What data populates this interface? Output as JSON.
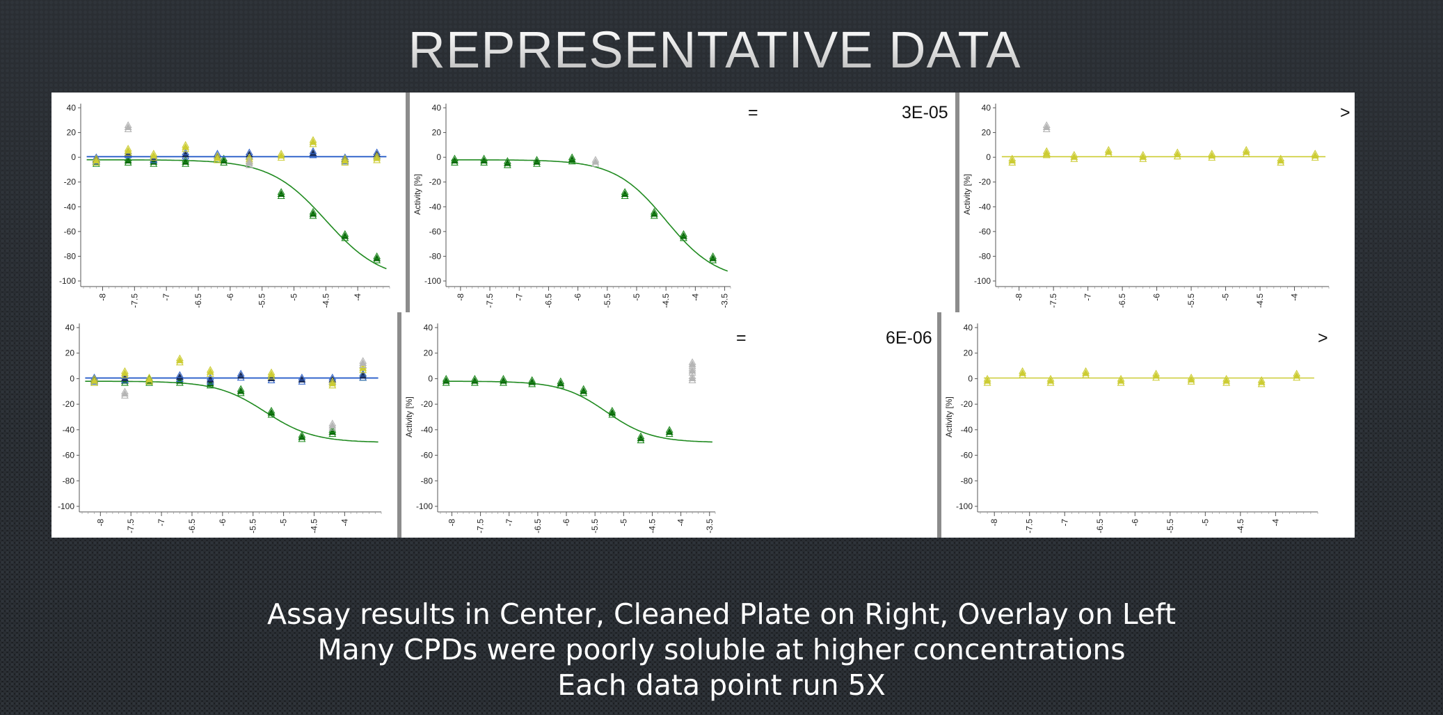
{
  "slide": {
    "title": "REPRESENTATIVE DATA",
    "captions": [
      "Assay results in Center, Cleaned Plate on Right, Overlay on Left",
      "Many CPDs were poorly soluble at higher concentrations",
      "Each data point run 5X"
    ],
    "row1": {
      "operator": "=",
      "value": "3E-05",
      "right_mark": ">"
    },
    "row2": {
      "operator": "=",
      "value": "6E-06",
      "right_mark": ">"
    }
  },
  "colors": {
    "green": "#1f8a1f",
    "dark_green": "#0b6b0b",
    "yellow": "#cccc33",
    "blue": "#3366cc",
    "navy": "#1a2d5a",
    "gray": "#b5b5b5"
  },
  "chart_data": [
    {
      "id": "row1-overlay",
      "type": "scatter",
      "ylabel": "",
      "ylim": [
        -100,
        40
      ],
      "yticks": [
        40,
        20,
        0,
        -20,
        -40,
        -60,
        -80,
        -100
      ],
      "xticks": [
        "-8",
        "-7.5",
        "-7",
        "-6.5",
        "-6",
        "-5.5",
        "-5",
        "-4.5",
        "-4"
      ],
      "xlim": [
        -8.3,
        -3.5
      ],
      "series": [
        {
          "color": "green",
          "fit": {
            "top": -2,
            "bottom": -100,
            "logec50": -4.5,
            "hill": 1.0
          },
          "points": [
            [
              -8.1,
              -4
            ],
            [
              -7.6,
              -3
            ],
            [
              -7.2,
              -4
            ],
            [
              -6.7,
              -4
            ],
            [
              -6.1,
              -3
            ],
            [
              -5.2,
              -30
            ],
            [
              -4.7,
              -46
            ],
            [
              -4.2,
              -64
            ],
            [
              -3.7,
              -82
            ]
          ]
        },
        {
          "color": "blue",
          "fit": {
            "flat": 0.5
          },
          "points": [
            [
              -8.1,
              -2
            ],
            [
              -7.6,
              3
            ],
            [
              -7.2,
              -1
            ],
            [
              -6.7,
              2
            ],
            [
              -6.2,
              1
            ],
            [
              -5.7,
              2
            ],
            [
              -4.7,
              3
            ],
            [
              -4.2,
              -2
            ],
            [
              -3.7,
              2
            ]
          ]
        },
        {
          "color": "yellow",
          "fit": null,
          "points": [
            [
              -8.1,
              -3
            ],
            [
              -7.6,
              5
            ],
            [
              -7.2,
              1
            ],
            [
              -6.7,
              8
            ],
            [
              -6.2,
              -1
            ],
            [
              -5.7,
              -2
            ],
            [
              -5.2,
              1
            ],
            [
              -4.7,
              12
            ],
            [
              -4.2,
              -3
            ],
            [
              -3.7,
              -1
            ]
          ]
        },
        {
          "color": "gray",
          "fit": null,
          "points": [
            [
              -7.6,
              24
            ],
            [
              -5.7,
              -5
            ]
          ]
        }
      ]
    },
    {
      "id": "row1-assay",
      "type": "scatter",
      "ylabel": "Activity [%]",
      "ylim": [
        -100,
        40
      ],
      "yticks": [
        40,
        20,
        0,
        -20,
        -40,
        -60,
        -80,
        -100
      ],
      "xticks": [
        "-8",
        "-7.5",
        "-7",
        "-6.5",
        "-6",
        "-5.5",
        "-5",
        "-4.5",
        "-4",
        "-3.5"
      ],
      "xlim": [
        -8.2,
        -3.4
      ],
      "series": [
        {
          "color": "green",
          "fit": {
            "top": -2,
            "bottom": -100,
            "logec50": -4.5,
            "hill": 1.0
          },
          "points": [
            [
              -8.1,
              -3
            ],
            [
              -7.6,
              -3
            ],
            [
              -7.2,
              -5
            ],
            [
              -6.7,
              -4
            ],
            [
              -6.1,
              -2
            ],
            [
              -5.2,
              -30
            ],
            [
              -4.7,
              -46
            ],
            [
              -4.2,
              -64
            ],
            [
              -3.7,
              -82
            ]
          ]
        },
        {
          "color": "gray",
          "fit": null,
          "points": [
            [
              -5.7,
              -4
            ]
          ]
        }
      ]
    },
    {
      "id": "row1-cleaned",
      "type": "scatter",
      "ylabel": "Activity [%]",
      "ylim": [
        -100,
        40
      ],
      "yticks": [
        40,
        20,
        0,
        -20,
        -40,
        -60,
        -80,
        -100
      ],
      "xticks": [
        "-8",
        "-7.5",
        "-7",
        "-6.5",
        "-6",
        "-5.5",
        "-5",
        "-4.5",
        "-4"
      ],
      "xlim": [
        -8.3,
        -3.5
      ],
      "series": [
        {
          "color": "yellow",
          "fit": {
            "flat": 0.5
          },
          "points": [
            [
              -8.1,
              -3
            ],
            [
              -7.6,
              3
            ],
            [
              -7.2,
              0
            ],
            [
              -6.7,
              4
            ],
            [
              -6.2,
              0
            ],
            [
              -5.7,
              2
            ],
            [
              -5.2,
              1
            ],
            [
              -4.7,
              4
            ],
            [
              -4.2,
              -3
            ],
            [
              -3.7,
              1
            ]
          ]
        },
        {
          "color": "gray",
          "fit": null,
          "points": [
            [
              -7.6,
              24
            ]
          ]
        }
      ]
    },
    {
      "id": "row2-overlay",
      "type": "scatter",
      "ylabel": "",
      "ylim": [
        -100,
        40
      ],
      "yticks": [
        40,
        20,
        0,
        -20,
        -40,
        -60,
        -80,
        -100
      ],
      "xticks": [
        "-8",
        "-7.5",
        "-7",
        "-6.5",
        "-6",
        "-5.5",
        "-5",
        "-4.5",
        "-4"
      ],
      "xlim": [
        -8.3,
        -3.4
      ],
      "series": [
        {
          "color": "green",
          "fit": {
            "top": -2,
            "bottom": -50,
            "logec50": -5.3,
            "hill": 1.1
          },
          "points": [
            [
              -8.1,
              -2
            ],
            [
              -7.6,
              -2
            ],
            [
              -7.2,
              -2
            ],
            [
              -6.7,
              -2
            ],
            [
              -6.2,
              -4
            ],
            [
              -5.7,
              -10
            ],
            [
              -5.2,
              -27
            ],
            [
              -4.7,
              -46
            ],
            [
              -4.2,
              -42
            ],
            [
              -3.7,
              2
            ]
          ]
        },
        {
          "color": "blue",
          "fit": {
            "flat": 0.5
          },
          "points": [
            [
              -8.1,
              -1
            ],
            [
              -7.6,
              0
            ],
            [
              -6.7,
              1
            ],
            [
              -6.2,
              -1
            ],
            [
              -5.7,
              2
            ],
            [
              -5.2,
              0
            ],
            [
              -4.7,
              -1
            ],
            [
              -4.2,
              -1
            ],
            [
              -3.7,
              2
            ]
          ]
        },
        {
          "color": "yellow",
          "fit": null,
          "points": [
            [
              -8.1,
              -2
            ],
            [
              -7.6,
              4
            ],
            [
              -7.2,
              -1
            ],
            [
              -6.7,
              14
            ],
            [
              -6.2,
              5
            ],
            [
              -5.2,
              3
            ],
            [
              -4.2,
              -4
            ],
            [
              -3.7,
              8
            ]
          ]
        },
        {
          "color": "gray",
          "fit": null,
          "points": [
            [
              -7.6,
              -12
            ],
            [
              -4.2,
              -37
            ],
            [
              -3.7,
              12
            ]
          ]
        }
      ]
    },
    {
      "id": "row2-assay",
      "type": "scatter",
      "ylabel": "Activity [%]",
      "ylim": [
        -100,
        40
      ],
      "yticks": [
        40,
        20,
        0,
        -20,
        -40,
        -60,
        -80,
        -100
      ],
      "xticks": [
        "-8",
        "-7.5",
        "-7",
        "-6.5",
        "-6",
        "-5.5",
        "-5",
        "-4.5",
        "-4",
        "-3.5"
      ],
      "xlim": [
        -8.2,
        -3.4
      ],
      "series": [
        {
          "color": "green",
          "fit": {
            "top": -2,
            "bottom": -50,
            "logec50": -5.3,
            "hill": 1.1
          },
          "points": [
            [
              -8.1,
              -2
            ],
            [
              -7.6,
              -2
            ],
            [
              -7.1,
              -2
            ],
            [
              -6.6,
              -3
            ],
            [
              -6.1,
              -4
            ],
            [
              -5.7,
              -10
            ],
            [
              -5.2,
              -27
            ],
            [
              -4.7,
              -47
            ],
            [
              -4.2,
              -42
            ]
          ]
        },
        {
          "color": "gray",
          "fit": null,
          "points": [
            [
              -3.8,
              11
            ],
            [
              -3.8,
              6
            ],
            [
              -3.8,
              0
            ]
          ]
        }
      ]
    },
    {
      "id": "row2-cleaned",
      "type": "scatter",
      "ylabel": "Activity [%]",
      "ylim": [
        -100,
        40
      ],
      "yticks": [
        40,
        20,
        0,
        -20,
        -40,
        -60,
        -80,
        -100
      ],
      "xticks": [
        "-8",
        "-7.5",
        "-7",
        "-6.5",
        "-6",
        "-5.5",
        "-5",
        "-4.5",
        "-4"
      ],
      "xlim": [
        -8.2,
        -3.4
      ],
      "series": [
        {
          "color": "yellow",
          "fit": {
            "flat": 0.5
          },
          "points": [
            [
              -8.1,
              -2
            ],
            [
              -7.6,
              4
            ],
            [
              -7.2,
              -2
            ],
            [
              -6.7,
              4
            ],
            [
              -6.2,
              -2
            ],
            [
              -5.7,
              2
            ],
            [
              -5.2,
              -1
            ],
            [
              -4.7,
              -2
            ],
            [
              -4.2,
              -3
            ],
            [
              -3.7,
              2
            ]
          ]
        },
        {
          "color": "gray",
          "fit": null,
          "points": []
        }
      ]
    }
  ]
}
